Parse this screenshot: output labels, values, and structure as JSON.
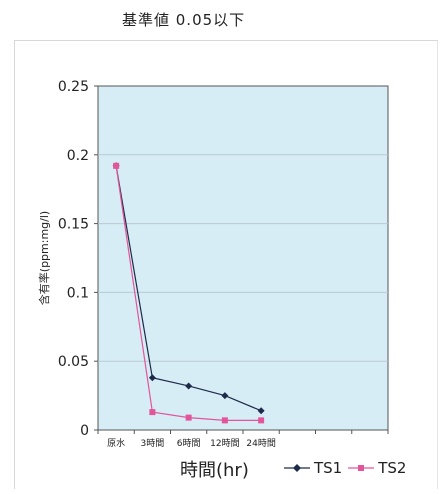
{
  "header": {
    "title": "基準値 0.05以下"
  },
  "chart_data": {
    "type": "line",
    "title": "基準値 0.05以下",
    "xlabel": "時間(hr)",
    "ylabel": "含有率(ppm:mg/l)",
    "categories": [
      "原水",
      "3時間",
      "6時間",
      "12時間",
      "24時間"
    ],
    "category_slots": 8,
    "ylim": [
      0,
      0.25
    ],
    "yticks": [
      "0",
      "0.05",
      "0.1",
      "0.15",
      "0.2",
      "0.25"
    ],
    "grid": true,
    "plot_background": "#d6edf5",
    "legend_position": "bottom-right",
    "series": [
      {
        "name": "TS1",
        "values": [
          0.192,
          0.038,
          0.032,
          0.025,
          0.014
        ],
        "color": "#1e2a4a",
        "marker": "diamond"
      },
      {
        "name": "TS2",
        "values": [
          0.192,
          0.013,
          0.009,
          0.007,
          0.007
        ],
        "color": "#e2559a",
        "marker": "square"
      }
    ]
  }
}
